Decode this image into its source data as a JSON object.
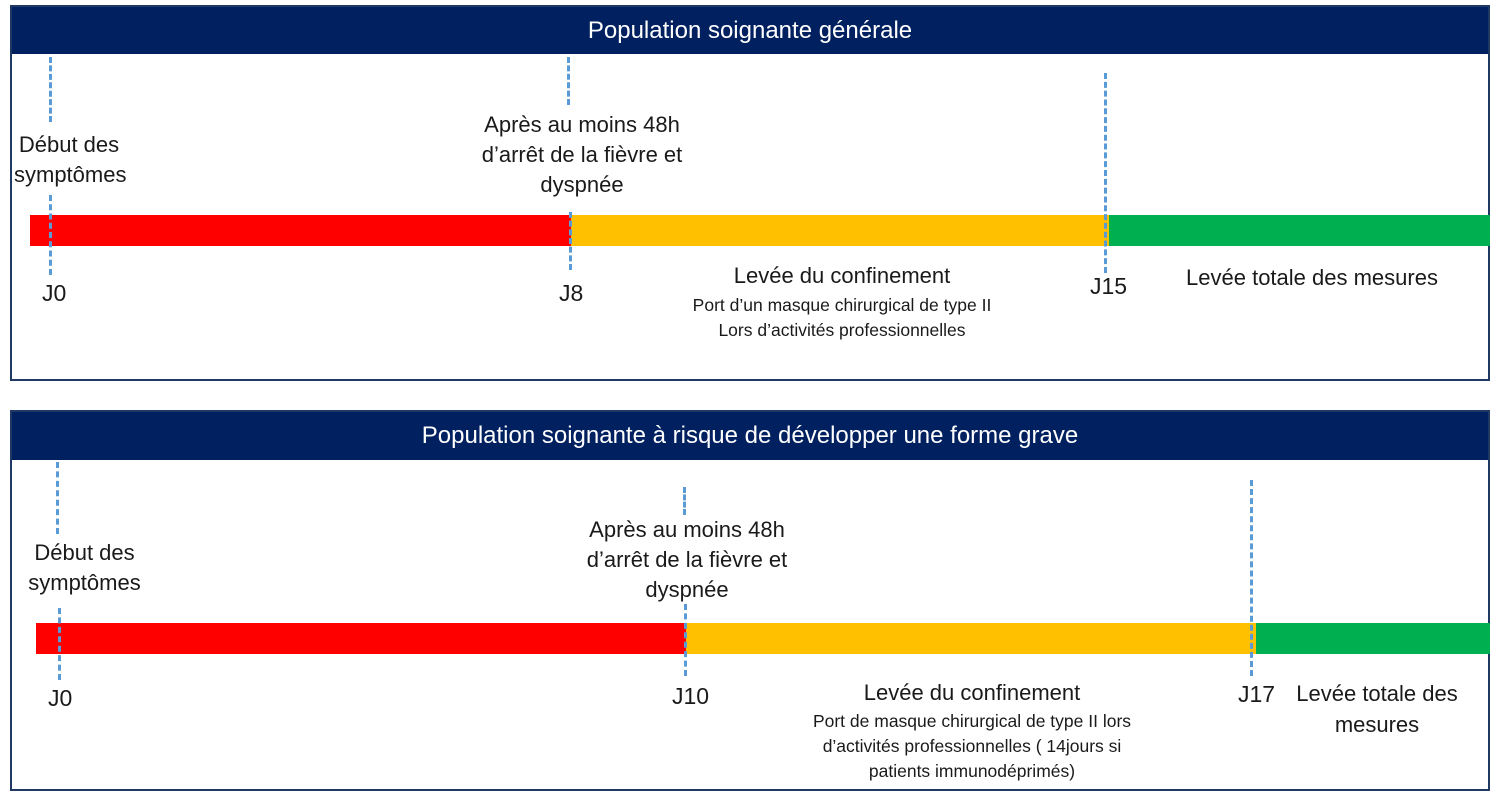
{
  "colors": {
    "header_bg": "#002060",
    "border": "#1f3864",
    "red": "#ff0000",
    "orange": "#ffc000",
    "green": "#00b050",
    "marker": "#5b9bd5"
  },
  "panels": [
    {
      "title": "Population soignante générale",
      "start_label": [
        "Début des",
        "symptômes"
      ],
      "mid_label": [
        "Après au moins 48h",
        "d’arrêt de la fièvre et",
        "dyspnée"
      ],
      "days": {
        "start": "J0",
        "mid": "J8",
        "end": "J15"
      },
      "mid_phase_title": "Levée du confinement",
      "mid_phase_detail": [
        "Port d’un masque chirurgical de type II",
        "Lors d’activités  professionnelles"
      ],
      "end_phase": [
        "Levée totale des mesures"
      ]
    },
    {
      "title": "Population soignante à risque de développer une forme grave",
      "start_label": [
        "Début des",
        "symptômes"
      ],
      "mid_label": [
        "Après au moins 48h",
        "d’arrêt de la fièvre et",
        "dyspnée"
      ],
      "days": {
        "start": "J0",
        "mid": "J10",
        "end": "J17"
      },
      "mid_phase_title": "Levée du confinement",
      "mid_phase_detail": [
        "Port de masque chirurgical de type II lors",
        "d’activités  professionnelles ( 14jours si",
        "patients immunodéprimés)"
      ],
      "end_phase": [
        "Levée totale des",
        "mesures"
      ]
    }
  ]
}
